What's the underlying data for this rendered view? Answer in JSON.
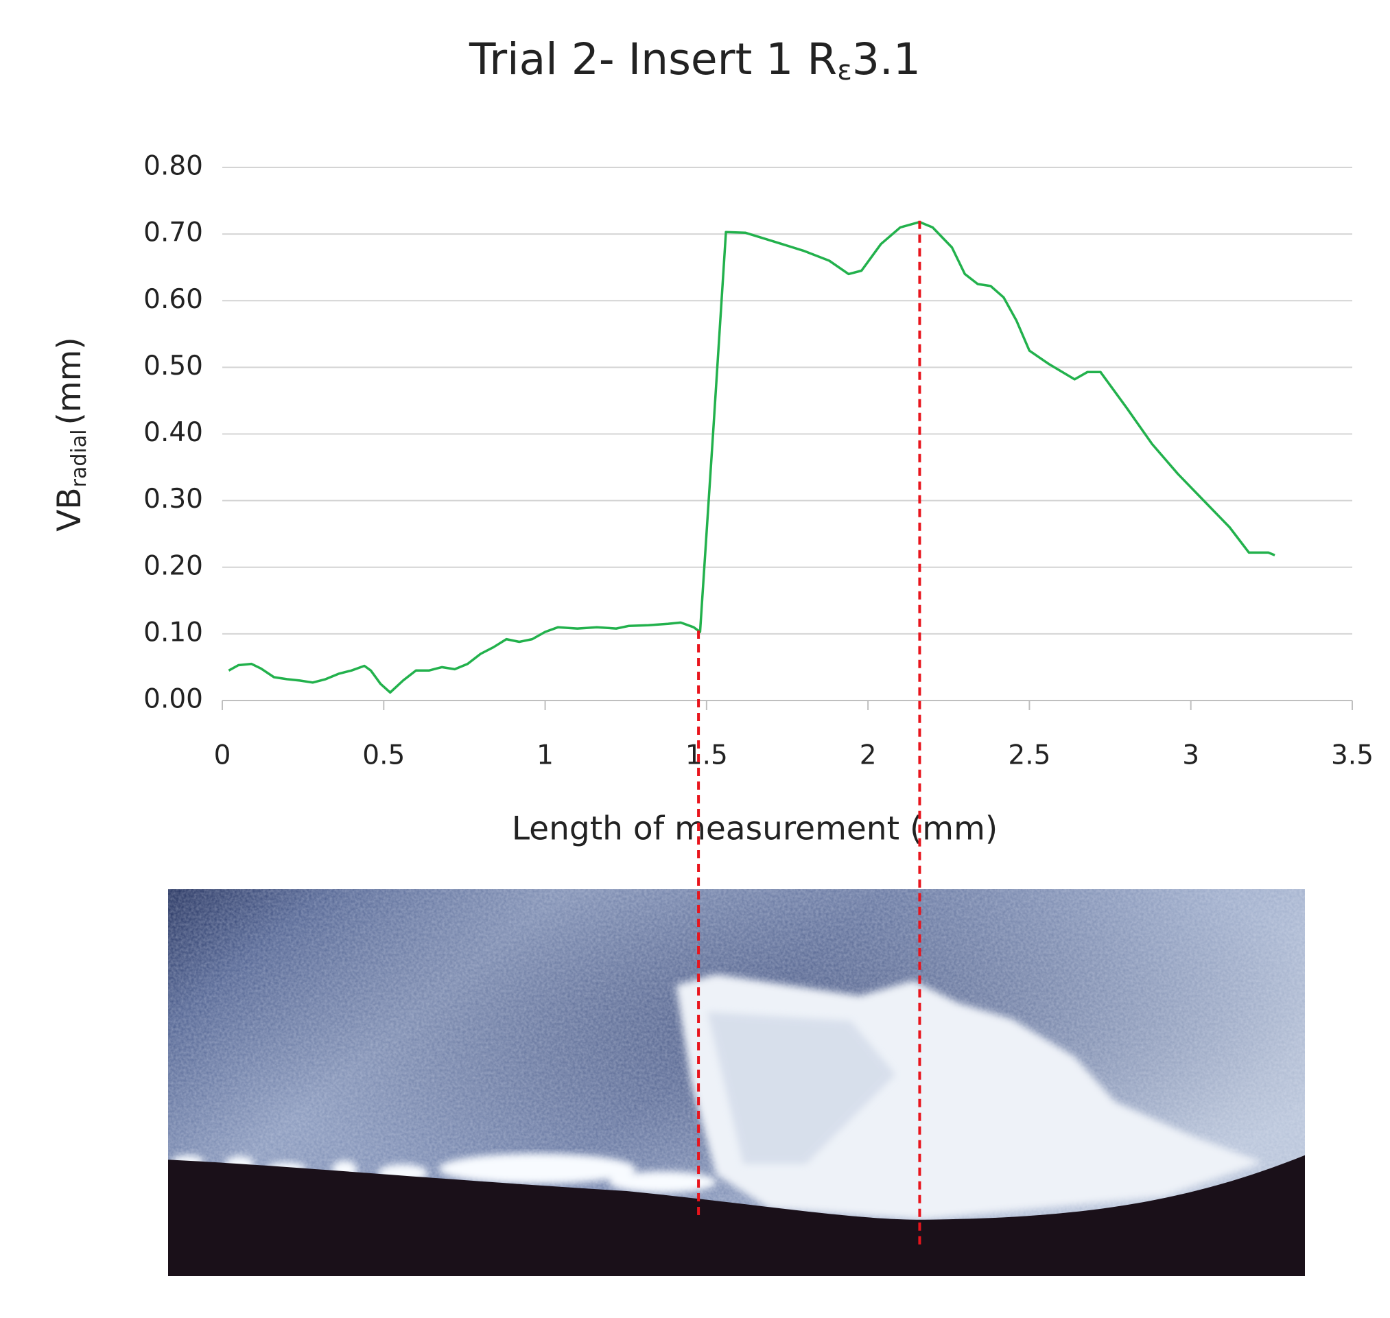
{
  "chart_data": {
    "type": "line",
    "title": {
      "main": "Trial 2- Insert 1 R",
      "subscript": "ε",
      "suffix": "3.1"
    },
    "x_label": "Length of measurement (mm)",
    "y_label": {
      "main": "VB",
      "subscript": "radial",
      "suffix": "(mm)"
    },
    "xlim": [
      0,
      3.5
    ],
    "xticks": [
      0,
      0.5,
      1,
      1.5,
      2,
      2.5,
      3,
      3.5
    ],
    "ylim": [
      0,
      0.8
    ],
    "yticks": [
      {
        "value": 0,
        "label": "0.00"
      },
      {
        "value": 0.1,
        "label": "0.10"
      },
      {
        "value": 0.2,
        "label": "0.20"
      },
      {
        "value": 0.3,
        "label": "0.30"
      },
      {
        "value": 0.4,
        "label": "0.40"
      },
      {
        "value": 0.5,
        "label": "0.50"
      },
      {
        "value": 0.6,
        "label": "0.60"
      },
      {
        "value": 0.7,
        "label": "0.70"
      },
      {
        "value": 0.8,
        "label": "0.80"
      }
    ],
    "grid": true,
    "x": [
      0.02,
      0.05,
      0.09,
      0.12,
      0.16,
      0.2,
      0.24,
      0.28,
      0.32,
      0.36,
      0.4,
      0.44,
      0.46,
      0.49,
      0.52,
      0.56,
      0.6,
      0.64,
      0.68,
      0.72,
      0.76,
      0.8,
      0.84,
      0.88,
      0.92,
      0.96,
      1.0,
      1.04,
      1.1,
      1.16,
      1.22,
      1.26,
      1.32,
      1.38,
      1.42,
      1.46,
      1.48,
      1.52,
      1.56,
      1.62,
      1.7,
      1.8,
      1.88,
      1.94,
      1.98,
      2.04,
      2.1,
      2.16,
      2.2,
      2.26,
      2.3,
      2.34,
      2.38,
      2.42,
      2.46,
      2.5,
      2.56,
      2.64,
      2.68,
      2.72,
      2.8,
      2.88,
      2.96,
      3.04,
      3.12,
      3.18,
      3.24,
      3.26
    ],
    "values": [
      0.045,
      0.053,
      0.055,
      0.048,
      0.035,
      0.032,
      0.03,
      0.027,
      0.032,
      0.04,
      0.045,
      0.052,
      0.045,
      0.025,
      0.012,
      0.03,
      0.045,
      0.045,
      0.05,
      0.047,
      0.055,
      0.07,
      0.08,
      0.092,
      0.088,
      0.092,
      0.103,
      0.11,
      0.108,
      0.11,
      0.108,
      0.112,
      0.113,
      0.115,
      0.117,
      0.11,
      0.103,
      0.4,
      0.703,
      0.702,
      0.69,
      0.675,
      0.66,
      0.64,
      0.645,
      0.685,
      0.71,
      0.718,
      0.71,
      0.68,
      0.64,
      0.625,
      0.622,
      0.605,
      0.57,
      0.525,
      0.505,
      0.482,
      0.493,
      0.493,
      0.44,
      0.385,
      0.34,
      0.3,
      0.26,
      0.222,
      0.222,
      0.218
    ],
    "color": "#22b14c",
    "reference_lines": {
      "color": "#e8141c",
      "x": [
        1.475,
        2.16
      ],
      "y": [
        0.105,
        0.72
      ]
    }
  }
}
